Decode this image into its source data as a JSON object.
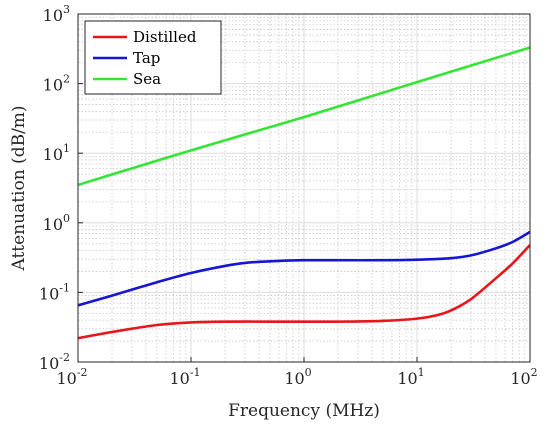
{
  "chart_data": {
    "type": "line",
    "xlabel": "Frequency (MHz)",
    "ylabel": "Attenuation (dB/m)",
    "x_scale": "log",
    "y_scale": "log",
    "xlim": [
      0.01,
      100
    ],
    "ylim": [
      0.01,
      1000
    ],
    "grid": true,
    "minor_grid": true,
    "legend_position": "top-left",
    "x_ticks": [
      {
        "base": "10",
        "exp": "-2"
      },
      {
        "base": "10",
        "exp": "-1"
      },
      {
        "base": "10",
        "exp": "0"
      },
      {
        "base": "10",
        "exp": "1"
      },
      {
        "base": "10",
        "exp": "2"
      }
    ],
    "y_ticks": [
      {
        "base": "10",
        "exp": "-2"
      },
      {
        "base": "10",
        "exp": "-1"
      },
      {
        "base": "10",
        "exp": "0"
      },
      {
        "base": "10",
        "exp": "1"
      },
      {
        "base": "10",
        "exp": "2"
      },
      {
        "base": "10",
        "exp": "3"
      }
    ],
    "series": [
      {
        "name": "Distilled",
        "color": "#e8161b",
        "x": [
          0.01,
          0.02,
          0.05,
          0.1,
          0.2,
          0.5,
          1,
          2,
          5,
          10,
          15,
          20,
          30,
          50,
          70,
          100
        ],
        "y": [
          0.022,
          0.027,
          0.034,
          0.037,
          0.038,
          0.038,
          0.038,
          0.038,
          0.039,
          0.042,
          0.047,
          0.055,
          0.08,
          0.16,
          0.26,
          0.48
        ]
      },
      {
        "name": "Tap",
        "color": "#1515d4",
        "x": [
          0.01,
          0.02,
          0.05,
          0.1,
          0.2,
          0.3,
          0.5,
          1,
          2,
          5,
          10,
          20,
          30,
          50,
          70,
          100
        ],
        "y": [
          0.065,
          0.09,
          0.14,
          0.19,
          0.24,
          0.265,
          0.28,
          0.29,
          0.29,
          0.29,
          0.295,
          0.31,
          0.34,
          0.43,
          0.53,
          0.74
        ]
      },
      {
        "name": "Sea",
        "color": "#33e633",
        "x": [
          0.01,
          0.1,
          1,
          10,
          100
        ],
        "y": [
          3.5,
          11,
          33,
          105,
          330
        ]
      }
    ]
  }
}
